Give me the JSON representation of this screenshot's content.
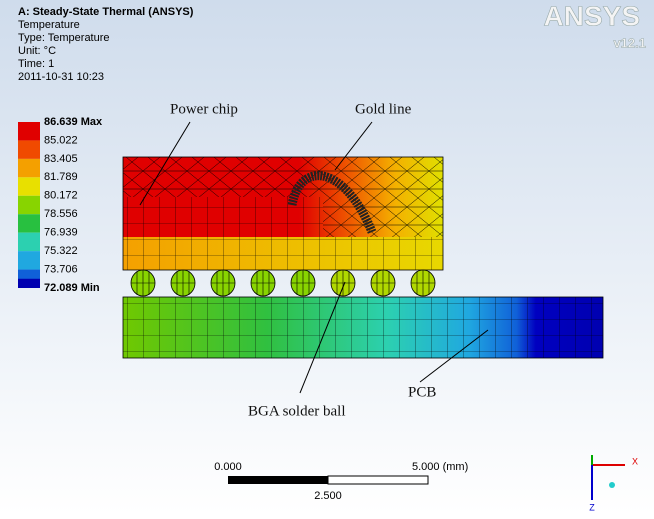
{
  "header": {
    "title": "A: Steady-State Thermal (ANSYS)",
    "lines": [
      "Temperature",
      "Type: Temperature",
      "Unit: °C",
      "Time: 1",
      "2011-10-31 10:23"
    ]
  },
  "logo": {
    "name": "ANSYS",
    "version": "v12.1"
  },
  "legend": {
    "items": [
      {
        "label": "86.639 Max",
        "color": "#e00000"
      },
      {
        "label": "85.022",
        "color": "#f04a00"
      },
      {
        "label": "83.405",
        "color": "#f4a000"
      },
      {
        "label": "81.789",
        "color": "#e8e000"
      },
      {
        "label": "80.172",
        "color": "#88d400"
      },
      {
        "label": "78.556",
        "color": "#28c040"
      },
      {
        "label": "76.939",
        "color": "#2cd0b0"
      },
      {
        "label": "75.322",
        "color": "#20a8e0"
      },
      {
        "label": "73.706",
        "color": "#1060d8"
      },
      {
        "label": "72.089 Min",
        "color": "#0000b0"
      }
    ]
  },
  "callouts": {
    "power_chip": "Power chip",
    "gold_line": "Gold line",
    "solder_ball": "BGA solder ball",
    "pcb": "PCB"
  },
  "scale_bar": {
    "left": "0.000",
    "right": "5.000 (mm)",
    "middle": "2.500"
  },
  "triad": {
    "x": "X",
    "z": "Z"
  }
}
